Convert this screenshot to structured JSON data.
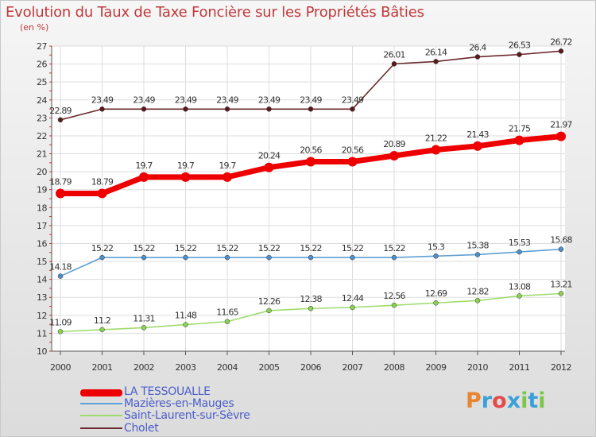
{
  "title": "Evolution du Taux de Taxe Foncière sur les Propriétés Bâties",
  "unit_label": "(en %)",
  "logo": {
    "text": "Proxiti",
    "colors": [
      "#e8862f",
      "#3aa1d8",
      "#e34a4a",
      "#3aa1d8",
      "#7cc64b",
      "#3aa1d8",
      "#7cc64b"
    ]
  },
  "chart_data": {
    "type": "line",
    "title": "Evolution du Taux de Taxe Foncière sur les Propriétés Bâties",
    "ylabel": "(en %)",
    "xlabel": "",
    "ylim": [
      10,
      27
    ],
    "yticks": [
      "10",
      "11",
      "12",
      "13",
      "14",
      "15",
      "16",
      "17",
      "18",
      "19",
      "20",
      "21",
      "22",
      "23",
      "24",
      "25",
      "26",
      "27"
    ],
    "categories": [
      "2000",
      "2001",
      "2002",
      "2003",
      "2004",
      "2005",
      "2006",
      "2007",
      "2008",
      "2009",
      "2010",
      "2011",
      "2012"
    ],
    "grid": true,
    "series": [
      {
        "name": "Cholet",
        "color": "#6a2a2e",
        "marker": "#5a1a1e",
        "values": [
          22.89,
          23.49,
          23.49,
          23.49,
          23.49,
          23.49,
          23.49,
          23.49,
          26.01,
          26.14,
          26.4,
          26.53,
          26.72
        ],
        "labels": [
          "22.89",
          "23.49",
          "23.49",
          "23.49",
          "23.49",
          "23.49",
          "23.49",
          "23.49",
          "26.01",
          "26.14",
          "26.4",
          "26.53",
          "26.72"
        ],
        "thick": false
      },
      {
        "name": "Mazières-en-Mauges",
        "color": "#5f9fd3",
        "marker": "#4d8fc6",
        "values": [
          14.18,
          15.22,
          15.22,
          15.22,
          15.22,
          15.22,
          15.22,
          15.22,
          15.22,
          15.3,
          15.38,
          15.53,
          15.68
        ],
        "labels": [
          "14.18",
          "15.22",
          "15.22",
          "15.22",
          "15.22",
          "15.22",
          "15.22",
          "15.22",
          "15.22",
          "15.3",
          "15.38",
          "15.53",
          "15.68"
        ],
        "thick": false
      },
      {
        "name": "Saint-Laurent-sur-Sèvre",
        "color": "#9fdc6e",
        "marker": "#8ccf55",
        "values": [
          11.09,
          11.2,
          11.31,
          11.48,
          11.65,
          12.26,
          12.38,
          12.44,
          12.56,
          12.69,
          12.82,
          13.08,
          13.21
        ],
        "labels": [
          "11.09",
          "11.2",
          "11.31",
          "11.48",
          "11.65",
          "12.26",
          "12.38",
          "12.44",
          "12.56",
          "12.69",
          "12.82",
          "13.08",
          "13.21"
        ],
        "thick": false
      },
      {
        "name": "LA TESSOUALLE",
        "color": "#ee0000",
        "marker": "#ee0000",
        "values": [
          18.79,
          18.79,
          19.7,
          19.7,
          19.7,
          20.24,
          20.56,
          20.56,
          20.89,
          21.22,
          21.43,
          21.75,
          21.97
        ],
        "labels": [
          "18.79",
          "18.79",
          "19.7",
          "19.7",
          "19.7",
          "20.24",
          "20.56",
          "20.56",
          "20.89",
          "21.22",
          "21.43",
          "21.75",
          "21.97"
        ],
        "thick": true
      }
    ],
    "legend": [
      {
        "name": "LA TESSOUALLE",
        "color": "#ee0000"
      },
      {
        "name": "Mazières-en-Mauges",
        "color": "#5f9fd3"
      },
      {
        "name": "Saint-Laurent-sur-Sèvre",
        "color": "#9fdc6e"
      },
      {
        "name": "Cholet",
        "color": "#6a2a2e"
      }
    ]
  }
}
